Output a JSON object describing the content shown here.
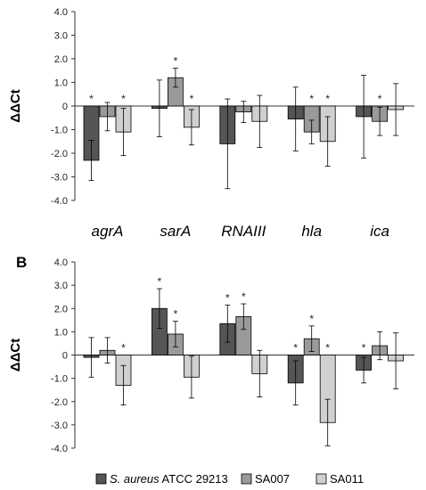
{
  "chart_data": [
    {
      "type": "bar",
      "panel_label": "",
      "ylabel": "ΔΔCt",
      "ylim": [
        -4.0,
        4.0
      ],
      "yticks": [
        "4.0",
        "3.0",
        "2.0",
        "1.0",
        "0",
        "-1.0",
        "-2.0",
        "-3.0",
        "-4.0"
      ],
      "categories": [
        "agrA",
        "sarA",
        "RNAIII",
        "hla",
        "ica"
      ],
      "series": [
        {
          "name": "S. aureus ATCC 29213",
          "color": "#555555",
          "values": [
            -2.3,
            -0.1,
            -1.6,
            -0.55,
            -0.45
          ],
          "errors": [
            0.85,
            1.2,
            1.9,
            1.35,
            1.75
          ],
          "significant": [
            true,
            false,
            false,
            false,
            false
          ]
        },
        {
          "name": "SA007",
          "color": "#9a9a9a",
          "values": [
            -0.45,
            1.2,
            -0.25,
            -1.1,
            -0.65
          ],
          "errors": [
            0.6,
            0.4,
            0.45,
            0.5,
            0.6
          ],
          "significant": [
            false,
            true,
            false,
            true,
            true
          ]
        },
        {
          "name": "SA011",
          "color": "#d0d0d0",
          "values": [
            -1.1,
            -0.9,
            -0.65,
            -1.5,
            -0.15
          ],
          "errors": [
            1.0,
            0.75,
            1.1,
            1.05,
            1.1
          ],
          "significant": [
            true,
            true,
            false,
            true,
            false
          ]
        }
      ],
      "significance_marker": "*"
    },
    {
      "type": "bar",
      "panel_label": "B",
      "ylabel": "ΔΔCt",
      "ylim": [
        -4.0,
        4.0
      ],
      "yticks": [
        "4.0",
        "3.0",
        "2.0",
        "1.0",
        "0",
        "-1.0",
        "-2.0",
        "-3.0",
        "-4.0"
      ],
      "categories": [
        "agrA",
        "sarA",
        "RNAIII",
        "hla",
        "ica"
      ],
      "series": [
        {
          "name": "S. aureus ATCC 29213",
          "color": "#555555",
          "values": [
            -0.1,
            2.0,
            1.35,
            -1.2,
            -0.65
          ],
          "errors": [
            0.85,
            0.85,
            0.8,
            0.95,
            0.55
          ],
          "significant": [
            false,
            true,
            true,
            true,
            true
          ]
        },
        {
          "name": "SA007",
          "color": "#9a9a9a",
          "values": [
            0.2,
            0.9,
            1.65,
            0.7,
            0.4
          ],
          "errors": [
            0.55,
            0.55,
            0.55,
            0.55,
            0.6
          ],
          "significant": [
            false,
            true,
            true,
            true,
            false
          ]
        },
        {
          "name": "SA011",
          "color": "#d0d0d0",
          "values": [
            -1.3,
            -0.95,
            -0.8,
            -2.9,
            -0.25
          ],
          "errors": [
            0.85,
            0.9,
            1.0,
            1.0,
            1.2
          ],
          "significant": [
            true,
            false,
            false,
            true,
            false
          ]
        }
      ],
      "significance_marker": "*"
    }
  ],
  "legend": {
    "position": "bottom",
    "entries": [
      {
        "label_italic": "S. aureus",
        "label_rest": " ATCC 29213",
        "color": "#555555"
      },
      {
        "label_italic": "",
        "label_rest": "SA007",
        "color": "#9a9a9a"
      },
      {
        "label_italic": "",
        "label_rest": "SA011",
        "color": "#d0d0d0"
      }
    ]
  }
}
